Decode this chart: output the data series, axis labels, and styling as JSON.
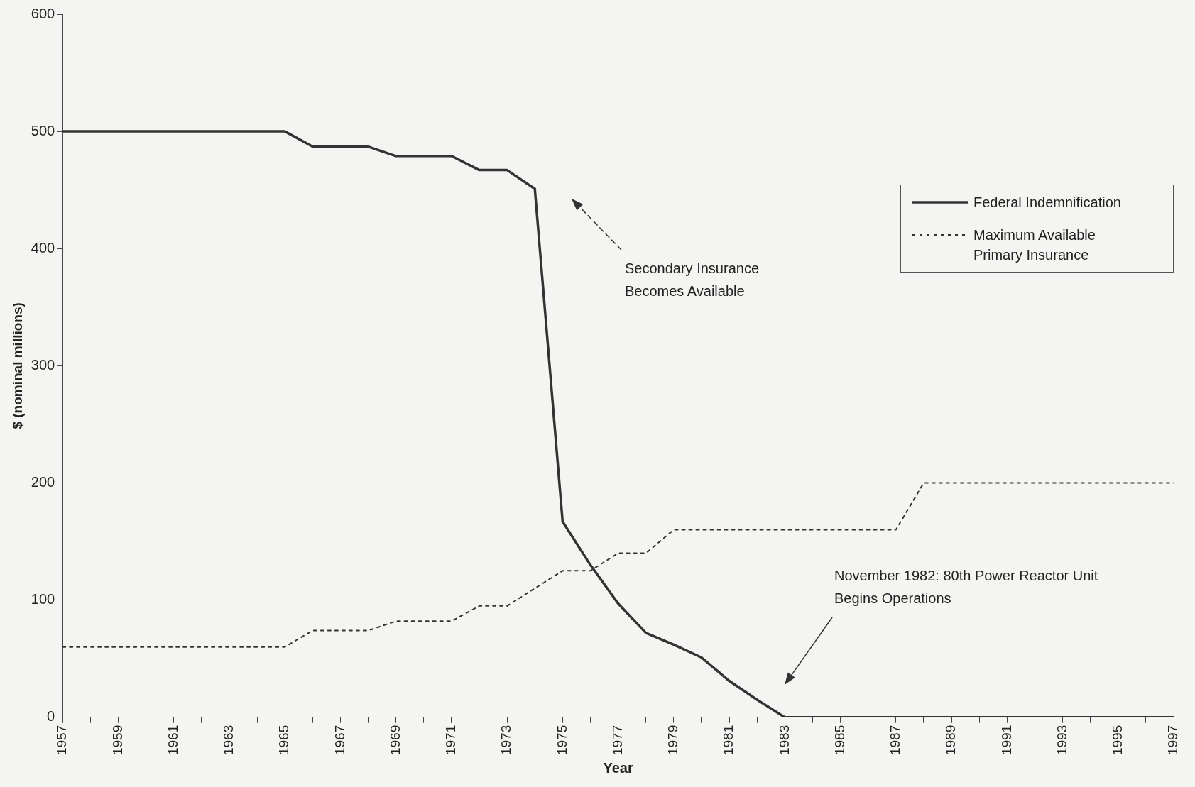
{
  "chart_data": {
    "type": "line",
    "xlabel": "Year",
    "ylabel": "$ (nominal millions)",
    "x": [
      1957,
      1958,
      1959,
      1960,
      1961,
      1962,
      1963,
      1964,
      1965,
      1966,
      1967,
      1968,
      1969,
      1970,
      1971,
      1972,
      1973,
      1974,
      1975,
      1976,
      1977,
      1978,
      1979,
      1980,
      1981,
      1982,
      1983,
      1984,
      1985,
      1986,
      1987,
      1988,
      1989,
      1990,
      1991,
      1992,
      1993,
      1994,
      1995,
      1996,
      1997
    ],
    "series": [
      {
        "name": "Federal Indemnification",
        "color": "#333333",
        "line_style": "solid",
        "values": [
          500,
          500,
          500,
          500,
          500,
          500,
          500,
          500,
          500,
          487,
          487,
          487,
          479,
          479,
          479,
          467,
          467,
          451,
          167,
          130,
          97,
          72,
          62,
          51,
          31,
          15,
          0,
          0,
          0,
          0,
          0,
          0,
          0,
          0,
          0,
          0,
          0,
          0,
          0,
          0,
          0
        ]
      },
      {
        "name": "Maximum Available Primary Insurance",
        "color": "#333333",
        "line_style": "dotted",
        "values": [
          60,
          60,
          60,
          60,
          60,
          60,
          60,
          60,
          60,
          74,
          74,
          74,
          82,
          82,
          82,
          95,
          95,
          110,
          125,
          125,
          140,
          140,
          160,
          160,
          160,
          160,
          160,
          160,
          160,
          160,
          160,
          200,
          200,
          200,
          200,
          200,
          200,
          200,
          200,
          200,
          200
        ]
      }
    ],
    "xlim": [
      1957,
      1997
    ],
    "xticks": [
      1957,
      {
        "value": 1958,
        "label": null
      },
      1959,
      {
        "value": 1960,
        "label": null
      },
      1961,
      {
        "value": 1962,
        "label": null
      },
      1963,
      {
        "value": 1964,
        "label": null
      },
      1965,
      {
        "value": 1966,
        "label": null
      },
      1967,
      {
        "value": 1968,
        "label": null
      },
      1969,
      {
        "value": 1970,
        "label": null
      },
      1971,
      {
        "value": 1972,
        "label": null
      },
      1973,
      {
        "value": 1974,
        "label": null
      },
      1975,
      {
        "value": 1976,
        "label": null
      },
      1977,
      {
        "value": 1978,
        "label": null
      },
      1979,
      {
        "value": 1980,
        "label": null
      },
      1981,
      {
        "value": 1982,
        "label": null
      },
      1983,
      {
        "value": 1984,
        "label": null
      },
      1985,
      {
        "value": 1986,
        "label": null
      },
      1987,
      {
        "value": 1988,
        "label": null
      },
      1989,
      {
        "value": 1990,
        "label": null
      },
      1991,
      {
        "value": 1992,
        "label": null
      },
      1993,
      {
        "value": 1994,
        "label": null
      },
      1995,
      {
        "value": 1996,
        "label": null
      },
      1997
    ],
    "ylim": [
      0,
      600
    ],
    "yticks": [
      0,
      100,
      200,
      300,
      400,
      500,
      600
    ],
    "grid": false,
    "legend": "top right",
    "marker": "none",
    "annotations": [
      "Secondary Insurance Becomes Available",
      "November 1982: 80th Power Reactor Unit Begins Operations"
    ]
  }
}
